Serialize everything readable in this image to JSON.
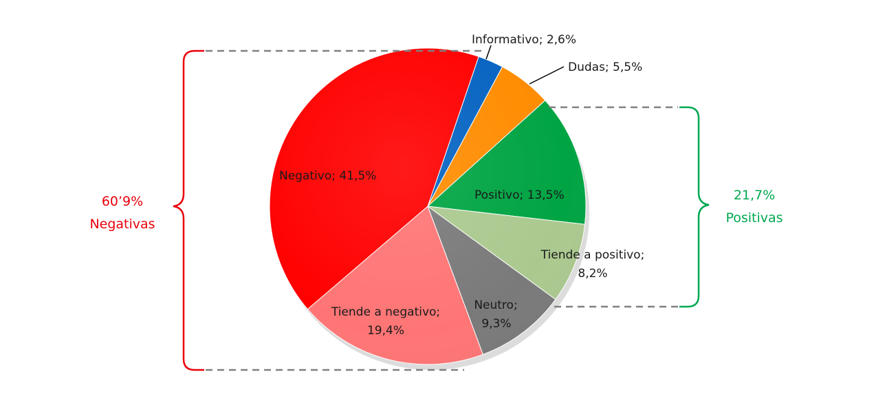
{
  "chart_data": {
    "type": "pie",
    "title": "",
    "slices": [
      {
        "label": "Informativo",
        "value": 2.6,
        "color": "#0563C1",
        "text": "Informativo; 2,6%"
      },
      {
        "label": "Dudas",
        "value": 5.5,
        "color": "#FF8C00",
        "text": "Dudas; 5,5%"
      },
      {
        "label": "Positivo",
        "value": 13.5,
        "color": "#00A443",
        "text": "Positivo; 13,5%"
      },
      {
        "label": "Tiende a positivo",
        "value": 8.2,
        "color": "#ABC98F",
        "text1": "Tiende a positivo;",
        "text2": "8,2%"
      },
      {
        "label": "Neutro",
        "value": 9.3,
        "color": "#7A7A7A",
        "text1": "Neutro;",
        "text2": "9,3%"
      },
      {
        "label": "Tiende a negativo",
        "value": 19.4,
        "color": "#FF7575",
        "text1": "Tiende a negativo;",
        "text2": "19,4%"
      },
      {
        "label": "Negativo",
        "value": 41.5,
        "color": "#FF0000",
        "text": "Negativo; 41,5%"
      }
    ],
    "groups": {
      "negative": {
        "value": "60’9%",
        "label": "Negativas",
        "color": "#E8000B"
      },
      "positive": {
        "value": "21,7%",
        "label": "Positivas",
        "color": "#00A850"
      }
    }
  }
}
